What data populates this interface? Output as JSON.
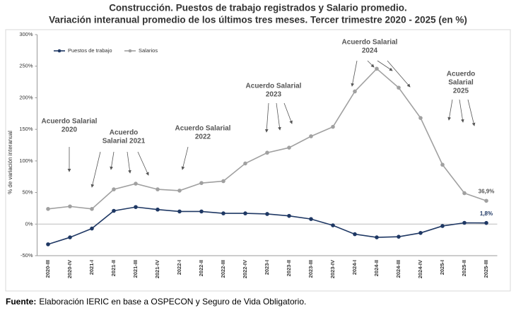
{
  "chart_data": {
    "type": "line",
    "title": "Construcción. Puestos de trabajo registrados y Salario promedio.",
    "subtitle": "Variación interanual promedio de los últimos tres meses. Tercer trimestre 2020 - 2025 (en %)",
    "y_label": "% de variación interanual",
    "categories": [
      "2020-III",
      "2020-IV",
      "2021-I",
      "2021-II",
      "2021-III",
      "2021-IV",
      "2022-I",
      "2022-II",
      "2022-III",
      "2022-IV",
      "2023-I",
      "2023-II",
      "2023-III",
      "2023-IV",
      "2024-I",
      "2024-II",
      "2024-III",
      "2024-IV",
      "2025-I",
      "2025-II",
      "2025-III"
    ],
    "series": [
      {
        "name": "Puestos de trabajo",
        "color": "#1f3864",
        "values": [
          -32,
          -21,
          -7,
          21,
          27,
          23,
          20,
          20,
          17,
          17,
          16,
          13,
          8,
          -2,
          -16,
          -21,
          -20,
          -14,
          -3,
          2,
          1.8
        ],
        "value_labels": [
          null,
          null,
          null,
          null,
          null,
          null,
          null,
          null,
          null,
          null,
          null,
          null,
          null,
          null,
          null,
          null,
          null,
          null,
          null,
          null,
          "1,8%"
        ]
      },
      {
        "name": "Salarios",
        "color": "#a0a0a0",
        "values": [
          24,
          28,
          24,
          55,
          64,
          55,
          53,
          65,
          68,
          96,
          113,
          121,
          139,
          154,
          210,
          246,
          216,
          168,
          94,
          49,
          36.9
        ],
        "value_labels": [
          null,
          null,
          null,
          null,
          null,
          null,
          null,
          null,
          null,
          null,
          null,
          null,
          null,
          null,
          null,
          null,
          null,
          null,
          null,
          null,
          "36,9%"
        ]
      }
    ],
    "ylim": [
      -50,
      300
    ],
    "yticks": [
      {
        "value": -50,
        "label": "-50%"
      },
      {
        "value": 0,
        "label": "0%"
      },
      {
        "value": 50,
        "label": "50%"
      },
      {
        "value": 100,
        "label": "100%"
      },
      {
        "value": 150,
        "label": "150%"
      },
      {
        "value": 200,
        "label": "200%"
      },
      {
        "value": 250,
        "label": "250%"
      },
      {
        "value": 300,
        "label": "300%"
      }
    ],
    "grid": false,
    "legend": "top-left",
    "annotations": [
      {
        "lines": [
          "Acuerdo Salarial",
          "2020"
        ]
      },
      {
        "lines": [
          "Acuerdo",
          "Salarial 2021"
        ]
      },
      {
        "lines": [
          "Acuerdo Salarial",
          "2022"
        ]
      },
      {
        "lines": [
          "Acuerdo Salarial",
          "2023"
        ]
      },
      {
        "lines": [
          "Acuerdo Salarial",
          "2024"
        ]
      },
      {
        "lines": [
          "Acuerdo",
          "Salarial",
          "2025"
        ]
      }
    ],
    "source_label": "Fuente:",
    "source_text": "Elaboración IERIC  en base a OSPECON  y Seguro de Vida Obligatorio."
  }
}
